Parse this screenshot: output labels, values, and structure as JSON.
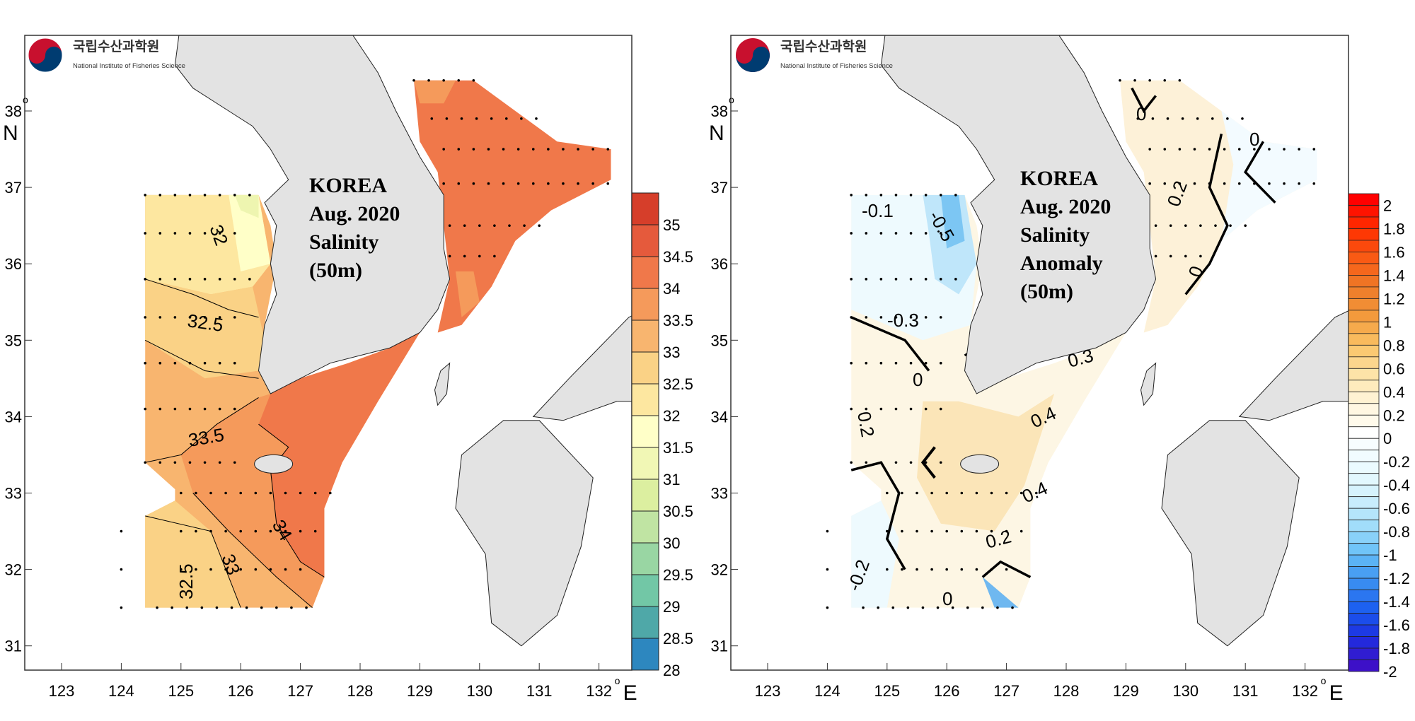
{
  "logo": {
    "korean": "국립수산과학원",
    "english": "National Institute of Fisheries Science"
  },
  "axes": {
    "lon_ticks": [
      "123",
      "124",
      "125",
      "126",
      "127",
      "128",
      "129",
      "130",
      "131",
      "132"
    ],
    "lat_ticks": [
      "31",
      "32",
      "33",
      "34",
      "35",
      "36",
      "37",
      "38"
    ],
    "lon_unit": "E",
    "lat_unit": "N",
    "degree": "o"
  },
  "panels": [
    {
      "title_lines": [
        "KOREA",
        "Aug. 2020",
        "Salinity",
        "(50m)"
      ],
      "colorbar": {
        "labels": [
          "35",
          "34.5",
          "34",
          "33.5",
          "33",
          "32.5",
          "32",
          "31.5",
          "31",
          "30.5",
          "30",
          "29.5",
          "29",
          "28.5",
          "28"
        ],
        "colors": [
          "#d63e2a",
          "#e55a3c",
          "#f0784a",
          "#f59a5b",
          "#f8b56f",
          "#fad286",
          "#fde7a0",
          "#ffffc8",
          "#f1f7b5",
          "#dcefa0",
          "#c0e4a3",
          "#99d6a3",
          "#72c7a6",
          "#4fa8a8",
          "#2d87bf"
        ]
      },
      "contour_labels": [
        "32",
        "32.5",
        "33.5",
        "34",
        "33",
        "32.5"
      ]
    },
    {
      "title_lines": [
        "KOREA",
        "Aug. 2020",
        "Salinity",
        "Anomaly",
        "(50m)"
      ],
      "colorbar": {
        "labels": [
          "2",
          "1.8",
          "1.6",
          "1.4",
          "1.2",
          "1",
          "0.8",
          "0.6",
          "0.4",
          "0.2",
          "0",
          "-0.2",
          "-0.4",
          "-0.6",
          "-0.8",
          "-1",
          "-1.2",
          "-1.4",
          "-1.6",
          "-1.8",
          "-2"
        ],
        "colors_top": [
          "#ff0000",
          "#ff3000",
          "#f95a14",
          "#ee7a28",
          "#f39a3c",
          "#fbc265",
          "#fde3a8",
          "#fff6dd",
          "#fffdf5"
        ],
        "colors_bottom": [
          "#f7fdff",
          "#e9fbff",
          "#cdeffc",
          "#9fdcfa",
          "#64bdf8",
          "#3a8ef0",
          "#1a5cf0",
          "#1e2ee0",
          "#3d10c8"
        ]
      },
      "contour_labels": [
        "-0.1",
        "-0.5",
        "-0.3",
        "0",
        "0.2",
        "0.4",
        "0.3",
        "0.4",
        "0.2",
        "0",
        "-0.2",
        "0",
        "0",
        "0.2",
        "0"
      ]
    }
  ]
}
